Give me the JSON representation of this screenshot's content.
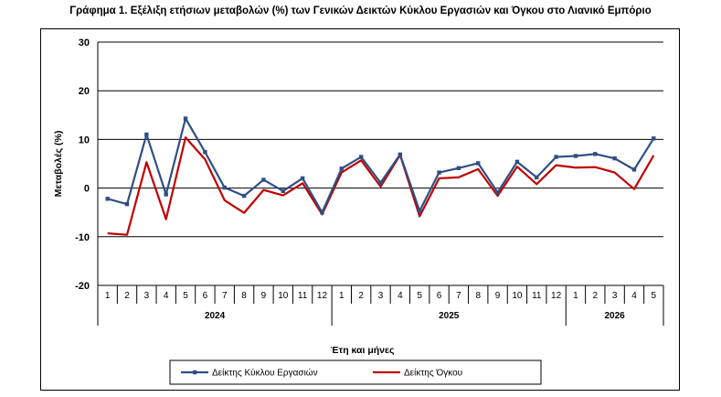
{
  "title": "Γράφημα 1. Εξέλιξη ετήσιων μεταβολών (%) των Γενικών Δεικτών Κύκλου Εργασιών και Όγκου στο Λιανικό Εμπόριο",
  "chart_data": {
    "type": "line",
    "title": "Γράφημα 1. Εξέλιξη ετήσιων μεταβολών (%) των Γενικών Δεικτών Κύκλου Εργασιών και Όγκου στο Λιανικό Εμπόριο",
    "xlabel": "Έτη και μήνες",
    "ylabel": "Μεταβολές (%)",
    "ylim": [
      -20,
      30
    ],
    "yticks": [
      30,
      20,
      10,
      0,
      -10,
      -20
    ],
    "grid": true,
    "legend": "bottom",
    "categories": [
      "1",
      "2",
      "3",
      "4",
      "5",
      "6",
      "7",
      "8",
      "9",
      "10",
      "11",
      "12",
      "1",
      "2",
      "3",
      "4",
      "5",
      "6",
      "7",
      "8",
      "9",
      "10",
      "11",
      "12",
      "1",
      "2",
      "3",
      "4",
      "5"
    ],
    "years": [
      {
        "label": "2024",
        "start": 0,
        "end": 11
      },
      {
        "label": "2025",
        "start": 12,
        "end": 23
      },
      {
        "label": "2026",
        "start": 24,
        "end": 28
      }
    ],
    "series": [
      {
        "name": "Δείκτης Κύκλου Εργασιών",
        "color": "#2e4f84",
        "marker": "square",
        "values": [
          -2.2,
          -3.3,
          11.0,
          -1.3,
          14.3,
          7.4,
          0.1,
          -1.6,
          1.7,
          -0.6,
          2.0,
          -5.0,
          4.0,
          6.4,
          1.1,
          6.9,
          -4.7,
          3.2,
          4.1,
          5.1,
          -0.9,
          5.4,
          2.2,
          6.4,
          6.6,
          7.0,
          6.1,
          3.8,
          10.2
        ]
      },
      {
        "name": "Δείκτης Όγκου",
        "color": "#c00000",
        "marker": "none",
        "values": [
          -9.3,
          -9.6,
          5.3,
          -6.4,
          10.4,
          5.9,
          -2.5,
          -5.1,
          -0.4,
          -1.5,
          1.0,
          -5.4,
          3.2,
          5.7,
          0.3,
          6.8,
          -5.8,
          2.0,
          2.2,
          3.9,
          -1.6,
          4.4,
          0.8,
          4.7,
          4.2,
          4.3,
          3.2,
          -0.2,
          6.7
        ]
      }
    ]
  }
}
